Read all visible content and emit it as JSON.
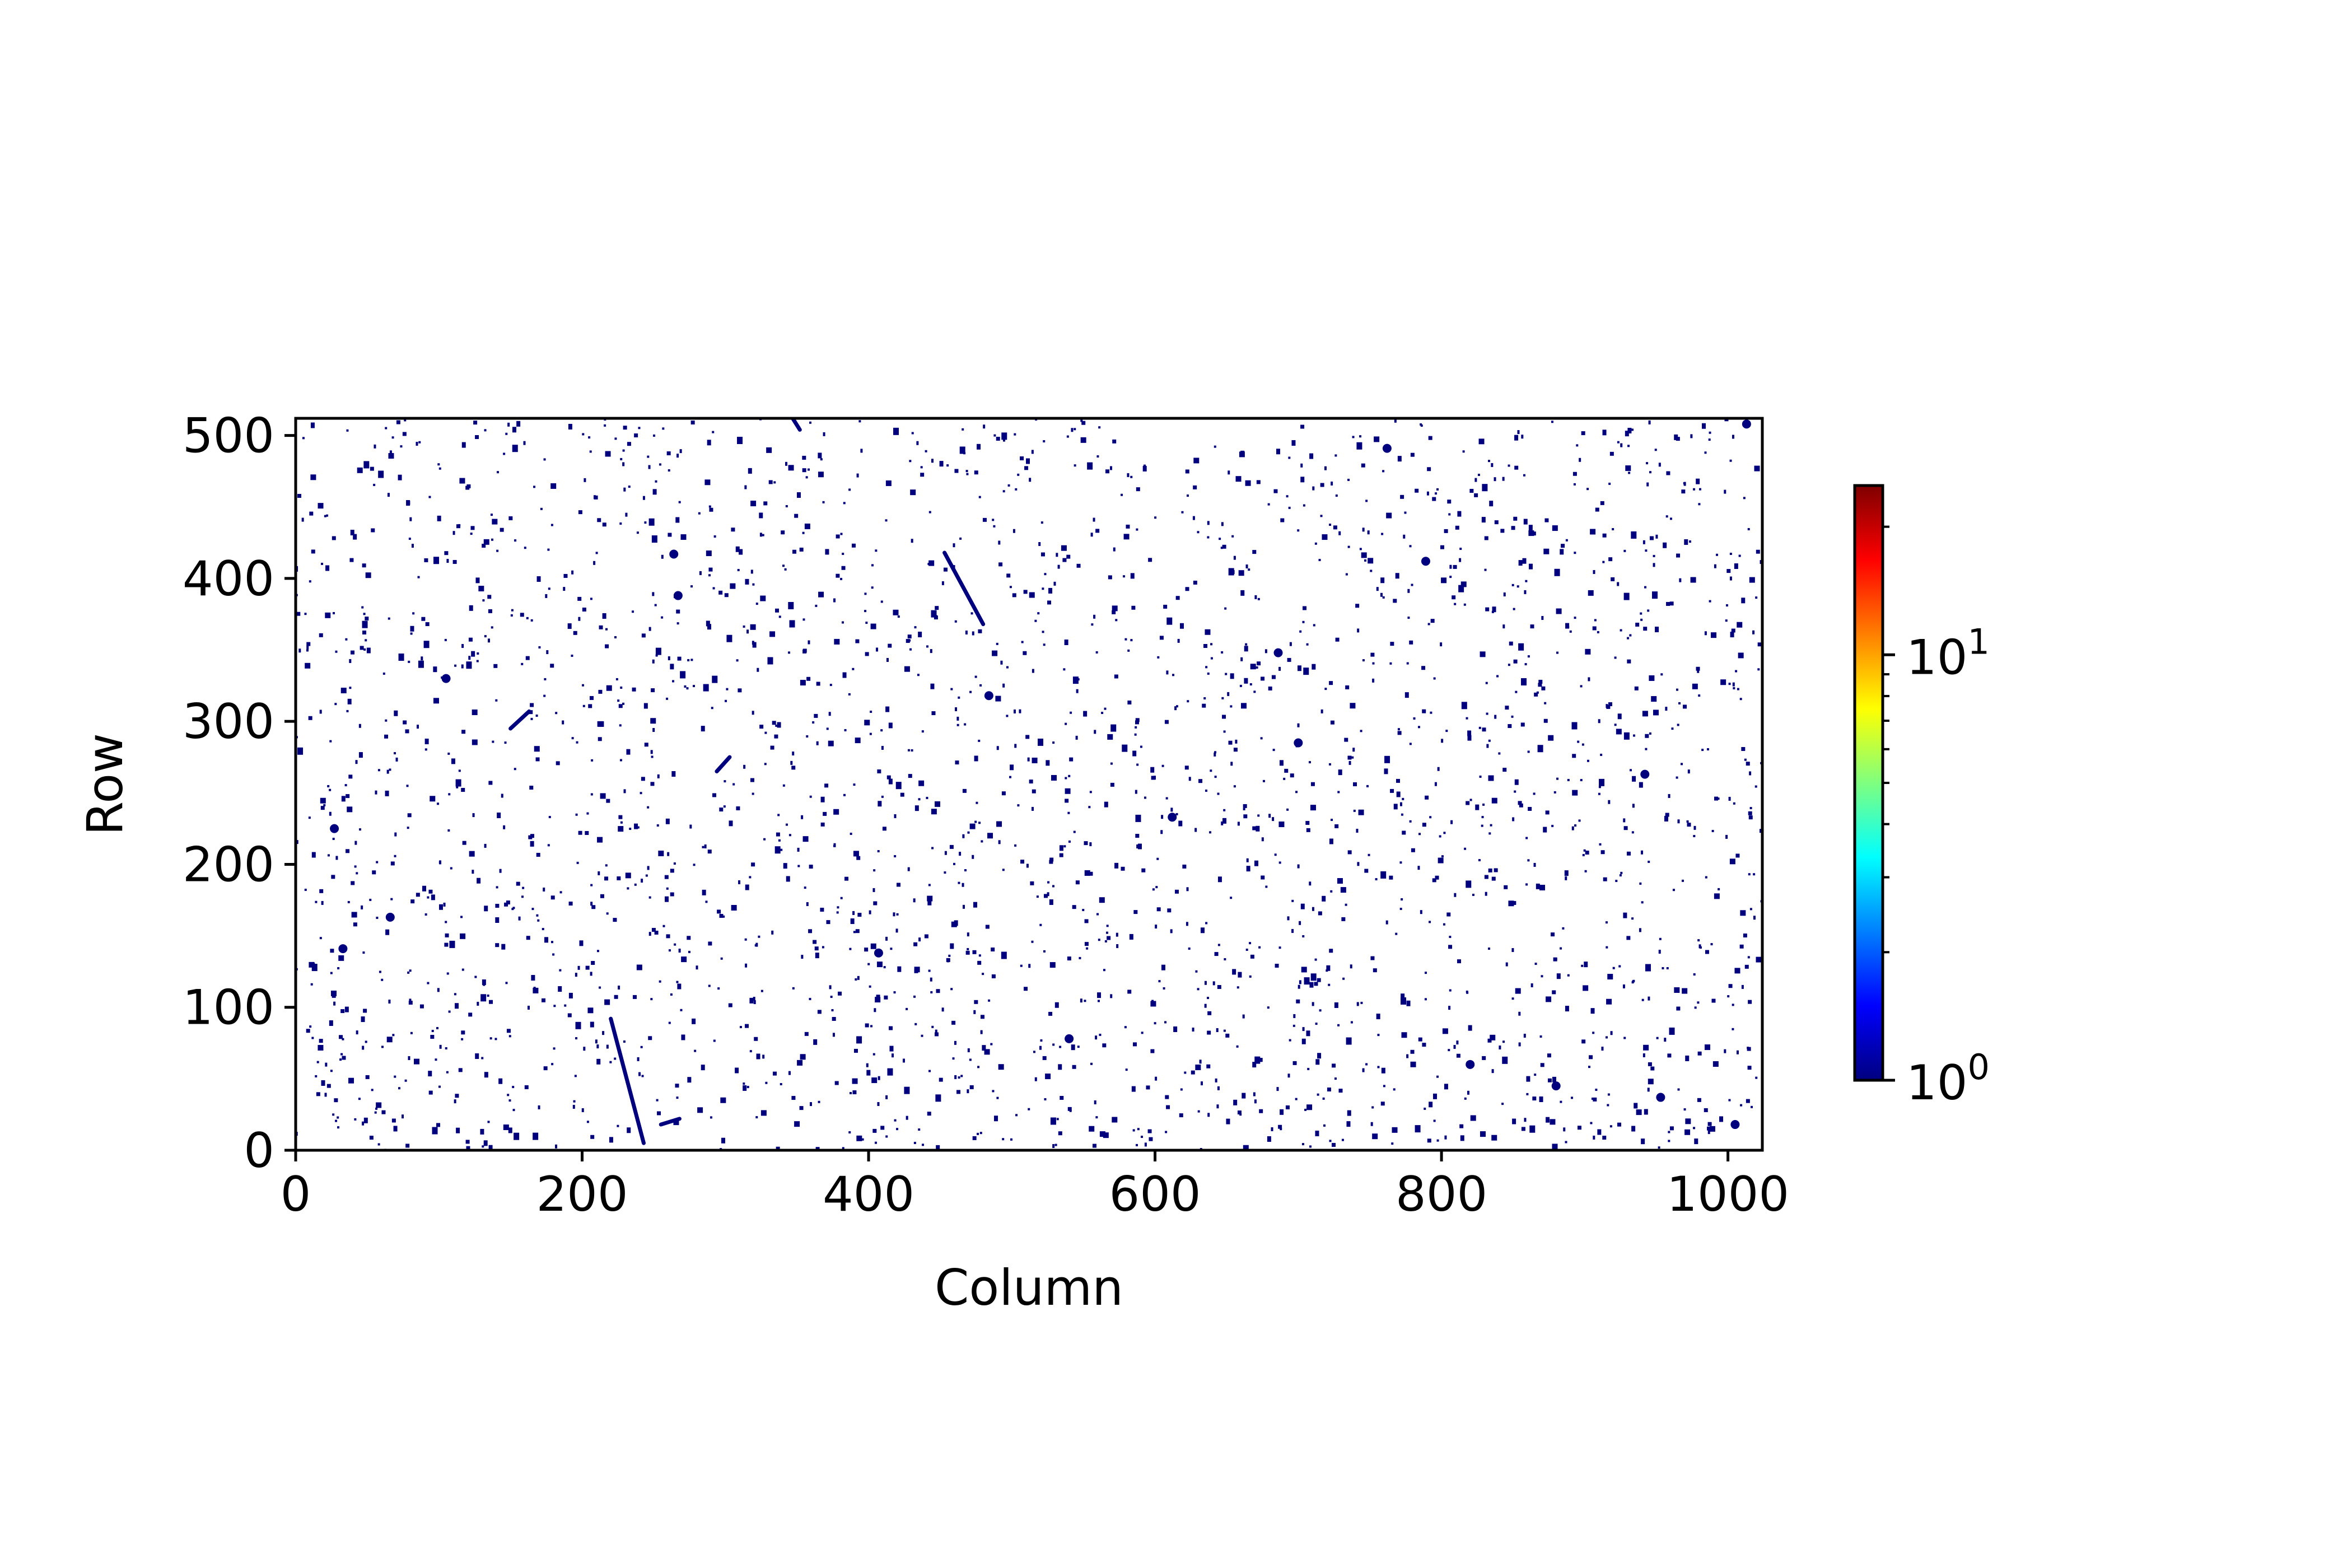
{
  "chart_data": {
    "type": "heatmap",
    "title": "",
    "xlabel": "Column",
    "ylabel": "Row",
    "xlim": [
      0,
      1024
    ],
    "ylim": [
      0,
      512
    ],
    "x_ticks": [
      0,
      200,
      400,
      600,
      800,
      1000
    ],
    "y_ticks": [
      0,
      100,
      200,
      300,
      400,
      500
    ],
    "x_tick_labels": [
      "0",
      "200",
      "400",
      "600",
      "800",
      "1000"
    ],
    "y_tick_labels": [
      "0",
      "100",
      "200",
      "300",
      "400",
      "500"
    ],
    "grid": false,
    "background_value_color": "#ffffff",
    "point_color": "#00008b",
    "colormap": "jet",
    "colorbar": {
      "scale": "log",
      "range": [
        1,
        25
      ],
      "tick_values": [
        1,
        10
      ],
      "tick_labels": [
        {
          "base": "10",
          "exp": "0"
        },
        {
          "base": "10",
          "exp": "1"
        }
      ],
      "colors": [
        "#00007f",
        "#0000ff",
        "#007fff",
        "#00ffff",
        "#7fff7f",
        "#ffff00",
        "#ff7f00",
        "#ff0000",
        "#7f0000"
      ]
    },
    "streaks": [
      {
        "x1": 220,
        "y1": 92,
        "x2": 243,
        "y2": 5,
        "value": 1
      },
      {
        "x1": 453,
        "y1": 418,
        "x2": 480,
        "y2": 368,
        "value": 1
      },
      {
        "x1": 150,
        "y1": 295,
        "x2": 163,
        "y2": 307,
        "value": 1
      },
      {
        "x1": 255,
        "y1": 18,
        "x2": 268,
        "y2": 22,
        "value": 1
      },
      {
        "x1": 347,
        "y1": 512,
        "x2": 352,
        "y2": 504,
        "value": 1
      },
      {
        "x1": 294,
        "y1": 265,
        "x2": 303,
        "y2": 275,
        "value": 1
      }
    ],
    "hits": [
      {
        "x": 27,
        "y": 225,
        "value": 1
      },
      {
        "x": 33,
        "y": 141,
        "value": 1
      },
      {
        "x": 66,
        "y": 163,
        "value": 1
      },
      {
        "x": 264,
        "y": 417,
        "value": 1
      },
      {
        "x": 267,
        "y": 388,
        "value": 1
      },
      {
        "x": 407,
        "y": 138,
        "value": 1
      },
      {
        "x": 484,
        "y": 318,
        "value": 1
      },
      {
        "x": 686,
        "y": 348,
        "value": 1
      },
      {
        "x": 700,
        "y": 285,
        "value": 1
      },
      {
        "x": 762,
        "y": 491,
        "value": 1
      },
      {
        "x": 789,
        "y": 412,
        "value": 1
      },
      {
        "x": 820,
        "y": 60,
        "value": 1
      },
      {
        "x": 942,
        "y": 263,
        "value": 1
      },
      {
        "x": 953,
        "y": 37,
        "value": 1
      },
      {
        "x": 1005,
        "y": 18,
        "value": 1
      },
      {
        "x": 1013,
        "y": 508,
        "value": 1
      },
      {
        "x": 540,
        "y": 78,
        "value": 1
      },
      {
        "x": 880,
        "y": 45,
        "value": 1
      },
      {
        "x": 105,
        "y": 330,
        "value": 1
      },
      {
        "x": 612,
        "y": 233,
        "value": 1
      }
    ],
    "scatter_hits": {
      "count": 2600,
      "seed": 7,
      "value": 1
    }
  }
}
